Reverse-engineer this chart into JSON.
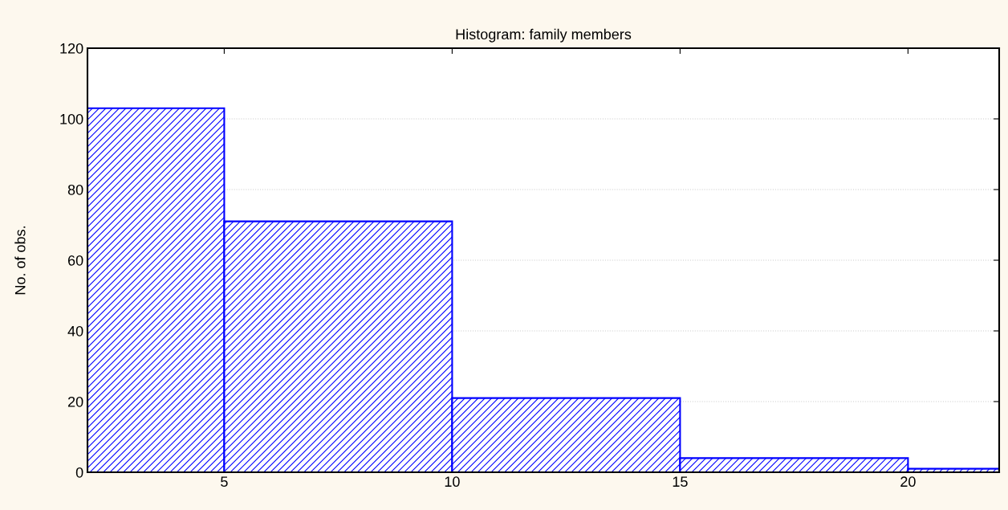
{
  "chart_data": {
    "type": "histogram",
    "title": "Histogram: family members",
    "ylabel": "No. of obs.",
    "bins": [
      2,
      5,
      10,
      15,
      20,
      22
    ],
    "values": [
      103,
      71,
      21,
      4,
      1
    ],
    "color": "#0000ff",
    "xlim": [
      2,
      22
    ],
    "xticks": [
      5,
      10,
      15,
      20
    ],
    "ylim": [
      0,
      120
    ],
    "yticks": [
      0,
      20,
      40,
      60,
      80,
      100,
      120
    ],
    "grid": "y"
  }
}
